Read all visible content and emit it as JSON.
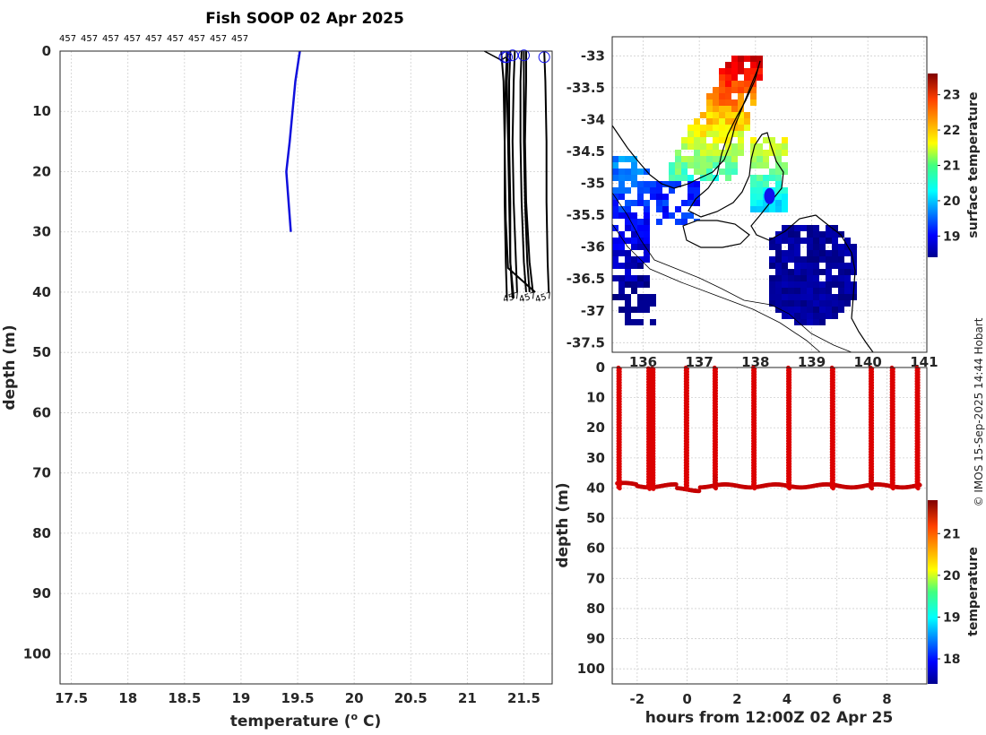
{
  "title": "Fish SOOP 02 Apr 2025",
  "credit": "© IMOS 15-Sep-2025 14:44 Hobart",
  "profile_ids": [
    "457",
    "457",
    "457",
    "457",
    "457",
    "457",
    "457",
    "457",
    "457"
  ],
  "end_labels": [
    "457",
    "457",
    "457"
  ],
  "colors": {
    "profile_blue": "#1010dd",
    "profile_black": "#000000",
    "marker_blue": "#1010ee"
  },
  "chart_data": [
    {
      "name": "profile-chart",
      "type": "line",
      "xlabel": "temperature (o C)",
      "xlabel_main": "temperature (",
      "xlabel_sup": "o",
      "xlabel_tail": " C)",
      "ylabel": "depth (m)",
      "xlim": [
        17.4,
        21.75
      ],
      "ylim": [
        105,
        0
      ],
      "xticks": [
        "17.5",
        "18",
        "18.5",
        "19",
        "19.5",
        "20",
        "20.5",
        "21",
        "21.5"
      ],
      "xtick_values": [
        17.5,
        18,
        18.5,
        19,
        19.5,
        20,
        20.5,
        21,
        21.5
      ],
      "yticks": [
        "0",
        "10",
        "20",
        "30",
        "40",
        "50",
        "60",
        "70",
        "80",
        "90",
        "100"
      ],
      "ytick_values": [
        0,
        10,
        20,
        30,
        40,
        50,
        60,
        70,
        80,
        90,
        100
      ],
      "climatology": {
        "name": "blue",
        "temperature": [
          19.52,
          19.48,
          19.43,
          19.4,
          19.44
        ],
        "depth": [
          0,
          5,
          15,
          20,
          30
        ]
      },
      "surface_markers": [
        {
          "temperature": 21.33,
          "depth": 1
        },
        {
          "temperature": 21.35,
          "depth": 1
        },
        {
          "temperature": 21.4,
          "depth": 0.7
        },
        {
          "temperature": 21.5,
          "depth": 0.7
        },
        {
          "temperature": 21.68,
          "depth": 1
        }
      ],
      "profiles": [
        {
          "temperature": [
            21.35,
            21.34,
            21.33,
            21.33,
            21.34,
            21.35
          ],
          "depth": [
            0,
            5,
            15,
            25,
            35,
            41
          ]
        },
        {
          "temperature": [
            21.36,
            21.35,
            21.36,
            21.37,
            21.38,
            21.4
          ],
          "depth": [
            0,
            5,
            15,
            25,
            35,
            41
          ]
        },
        {
          "temperature": [
            21.38,
            21.37,
            21.37,
            21.38,
            21.38,
            21.41
          ],
          "depth": [
            0,
            5,
            15,
            25,
            35,
            41
          ]
        },
        {
          "temperature": [
            21.42,
            21.41,
            21.4,
            21.41,
            21.43,
            21.44
          ],
          "depth": [
            0,
            5,
            15,
            25,
            35,
            40
          ]
        },
        {
          "temperature": [
            21.48,
            21.47,
            21.47,
            21.48,
            21.5,
            21.52
          ],
          "depth": [
            0,
            5,
            15,
            25,
            35,
            40
          ]
        },
        {
          "temperature": [
            21.5,
            21.5,
            21.5,
            21.51,
            21.53,
            21.55
          ],
          "depth": [
            0,
            5,
            15,
            25,
            35,
            40
          ]
        },
        {
          "temperature": [
            21.52,
            21.52,
            21.51,
            21.52,
            21.55,
            21.58
          ],
          "depth": [
            0,
            5,
            15,
            25,
            35,
            40
          ]
        },
        {
          "temperature": [
            21.68,
            21.69,
            21.7,
            21.7,
            21.71,
            21.72
          ],
          "depth": [
            0,
            5,
            15,
            25,
            35,
            40
          ]
        },
        {
          "temperature": [
            21.3,
            21.32,
            21.33,
            21.34,
            21.36,
            21.6
          ],
          "depth": [
            0,
            5,
            15,
            28,
            36,
            40
          ]
        }
      ]
    },
    {
      "name": "sst-map",
      "type": "heatmap",
      "xticks": [
        "136",
        "137",
        "138",
        "139",
        "140",
        "141"
      ],
      "xtick_values": [
        136,
        137,
        138,
        139,
        140,
        141
      ],
      "yticks": [
        "-33",
        "-33.5",
        "-34",
        "-34.5",
        "-35",
        "-35.5",
        "-36",
        "-36.5",
        "-37",
        "-37.5"
      ],
      "ytick_values": [
        -33,
        -33.5,
        -34,
        -34.5,
        -35,
        -35.5,
        -36,
        -36.5,
        -37,
        -37.5
      ],
      "xlim": [
        135.45,
        141.05
      ],
      "ylim": [
        -37.65,
        -32.7
      ],
      "colorbar_label": "surface temperature",
      "colorbar_ticks": [
        "19",
        "20",
        "21",
        "22",
        "23"
      ],
      "colorbar_values": [
        19,
        20,
        21,
        22,
        23
      ],
      "colorbar_range": [
        18.4,
        23.6
      ],
      "vessel_position": {
        "lon": 138.25,
        "lat": -35.2
      }
    },
    {
      "name": "time-depth-chart",
      "type": "scatter",
      "xlabel": "hours from 12:00Z 02 Apr 25",
      "ylabel": "depth (m)",
      "xlim": [
        -3,
        9.6
      ],
      "ylim": [
        105,
        0
      ],
      "xticks": [
        "-2",
        "0",
        "2",
        "4",
        "6",
        "8"
      ],
      "xtick_values": [
        -2,
        0,
        2,
        4,
        6,
        8
      ],
      "yticks": [
        "0",
        "10",
        "20",
        "30",
        "40",
        "50",
        "60",
        "70",
        "80",
        "90",
        "100"
      ],
      "ytick_values": [
        0,
        10,
        20,
        30,
        40,
        50,
        60,
        70,
        80,
        90,
        100
      ],
      "colorbar_label": "temperature",
      "colorbar_ticks": [
        "18",
        "19",
        "20",
        "21"
      ],
      "colorbar_values": [
        18,
        19,
        20,
        21
      ],
      "colorbar_range": [
        17.4,
        21.8
      ],
      "casts_hours": [
        -2.75,
        -1.55,
        -1.4,
        -0.05,
        1.1,
        2.65,
        4.05,
        5.8,
        7.35,
        8.2,
        9.2
      ],
      "cast_temperature": 21.4,
      "bottom_temperature": 21.5
    }
  ]
}
